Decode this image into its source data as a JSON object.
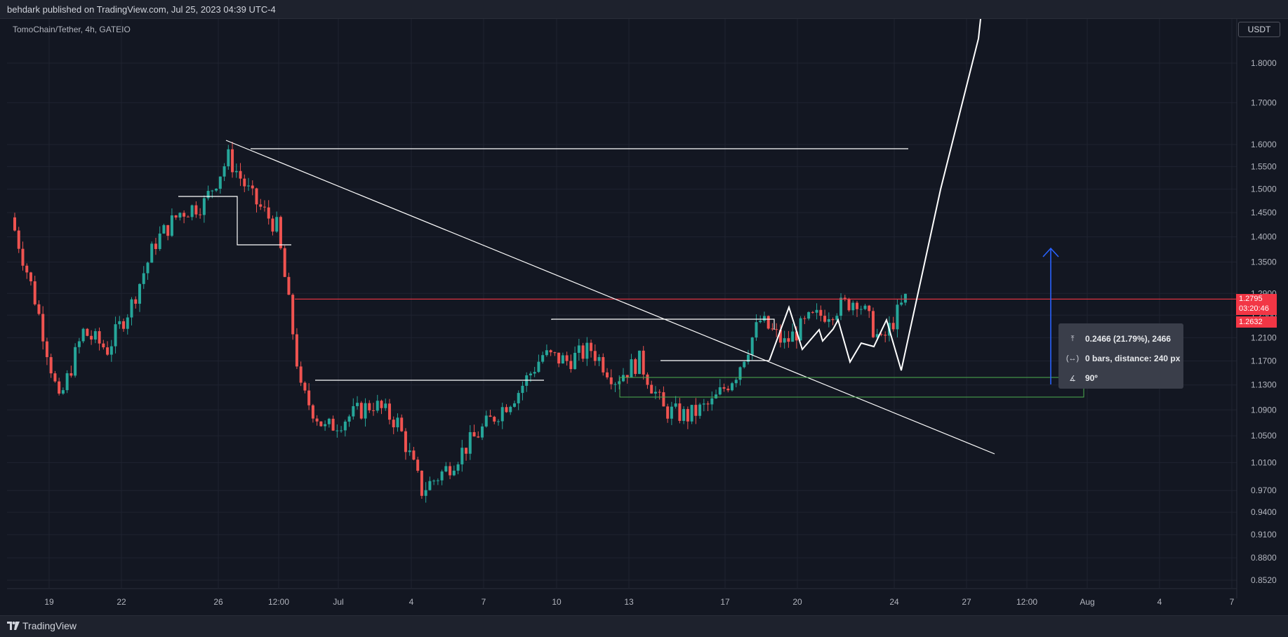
{
  "header": {
    "published_text": "behdark published on TradingView.com, Jul 25, 2023 04:39 UTC-4"
  },
  "footer": {
    "brand": "TradingView"
  },
  "toolbar": {
    "currency_label": "USDT"
  },
  "colors": {
    "background": "#131722",
    "bull": "#26a69a",
    "bear": "#ef5350",
    "price_line": "#f23645",
    "drawing": "#ffffff",
    "box": "#4caf50",
    "arrow": "#2962ff"
  },
  "measure_tooltip": {
    "price_change": "0.2466 (21.79%), 2466",
    "bars_distance": "0 bars, distance: 240 px",
    "angle": "90º"
  },
  "price_labels": {
    "last_price": "1.2795",
    "countdown": "03:20:46",
    "second_price": "1.2632"
  },
  "chart_data": {
    "type": "candlestick",
    "title": "TomoChain/Tether, 4h, GATEIO",
    "y_axis": {
      "scale": "log",
      "ticks": [
        "1.8000",
        "1.7000",
        "1.6000",
        "1.5500",
        "1.5000",
        "1.4500",
        "1.4000",
        "1.3500",
        "1.2900",
        "1.2500",
        "1.2100",
        "1.1700",
        "1.1300",
        "1.0900",
        "1.0500",
        "1.0100",
        "0.9700",
        "0.9400",
        "0.9100",
        "0.8800",
        "0.8520"
      ],
      "range": [
        0.835,
        1.88
      ]
    },
    "x_axis": {
      "ticks": [
        "19",
        "22",
        "26",
        "12:00",
        "Jul",
        "4",
        "7",
        "10",
        "13",
        "17",
        "20",
        "24",
        "27",
        "12:00",
        "Aug",
        "4",
        "7"
      ]
    },
    "grid": true,
    "series": [
      {
        "name": "TOMOUSDT",
        "points": [
          {
            "t": "Jun 18",
            "close": 1.44
          },
          {
            "t": "Jun 19",
            "close": 1.28
          },
          {
            "t": "Jun 20",
            "close": 1.1
          },
          {
            "t": "Jun 21",
            "close": 1.22
          },
          {
            "t": "Jun 22",
            "close": 1.19
          },
          {
            "t": "Jun 23",
            "close": 1.27
          },
          {
            "t": "Jun 24",
            "close": 1.39
          },
          {
            "t": "Jun 25",
            "close": 1.45
          },
          {
            "t": "Jun 26",
            "close": 1.47
          },
          {
            "t": "Jun 27",
            "close": 1.57
          },
          {
            "t": "Jun 28",
            "close": 1.48
          },
          {
            "t": "Jun 29",
            "close": 1.42
          },
          {
            "t": "Jun 30",
            "close": 1.12
          },
          {
            "t": "Jul 1",
            "close": 1.06
          },
          {
            "t": "Jul 2",
            "close": 1.08
          },
          {
            "t": "Jul 3",
            "close": 1.1
          },
          {
            "t": "Jul 4",
            "close": 1.07
          },
          {
            "t": "Jul 5",
            "close": 0.97
          },
          {
            "t": "Jul 6",
            "close": 1.0
          },
          {
            "t": "Jul 7",
            "close": 1.04
          },
          {
            "t": "Jul 8",
            "close": 1.08
          },
          {
            "t": "Jul 9",
            "close": 1.12
          },
          {
            "t": "Jul 10",
            "close": 1.18
          },
          {
            "t": "Jul 11",
            "close": 1.17
          },
          {
            "t": "Jul 12",
            "close": 1.19
          },
          {
            "t": "Jul 13",
            "close": 1.14
          },
          {
            "t": "Jul 14",
            "close": 1.17
          },
          {
            "t": "Jul 15",
            "close": 1.09
          },
          {
            "t": "Jul 16",
            "close": 1.08
          },
          {
            "t": "Jul 17",
            "close": 1.1
          },
          {
            "t": "Jul 18",
            "close": 1.15
          },
          {
            "t": "Jul 19",
            "close": 1.24
          },
          {
            "t": "Jul 20",
            "close": 1.2
          },
          {
            "t": "Jul 21",
            "close": 1.24
          },
          {
            "t": "Jul 22",
            "close": 1.26
          },
          {
            "t": "Jul 23",
            "close": 1.28
          },
          {
            "t": "Jul 24",
            "close": 1.2
          },
          {
            "t": "Jul 25",
            "close": 1.2795
          }
        ]
      }
    ],
    "horizontal_line": 1.2795
  }
}
